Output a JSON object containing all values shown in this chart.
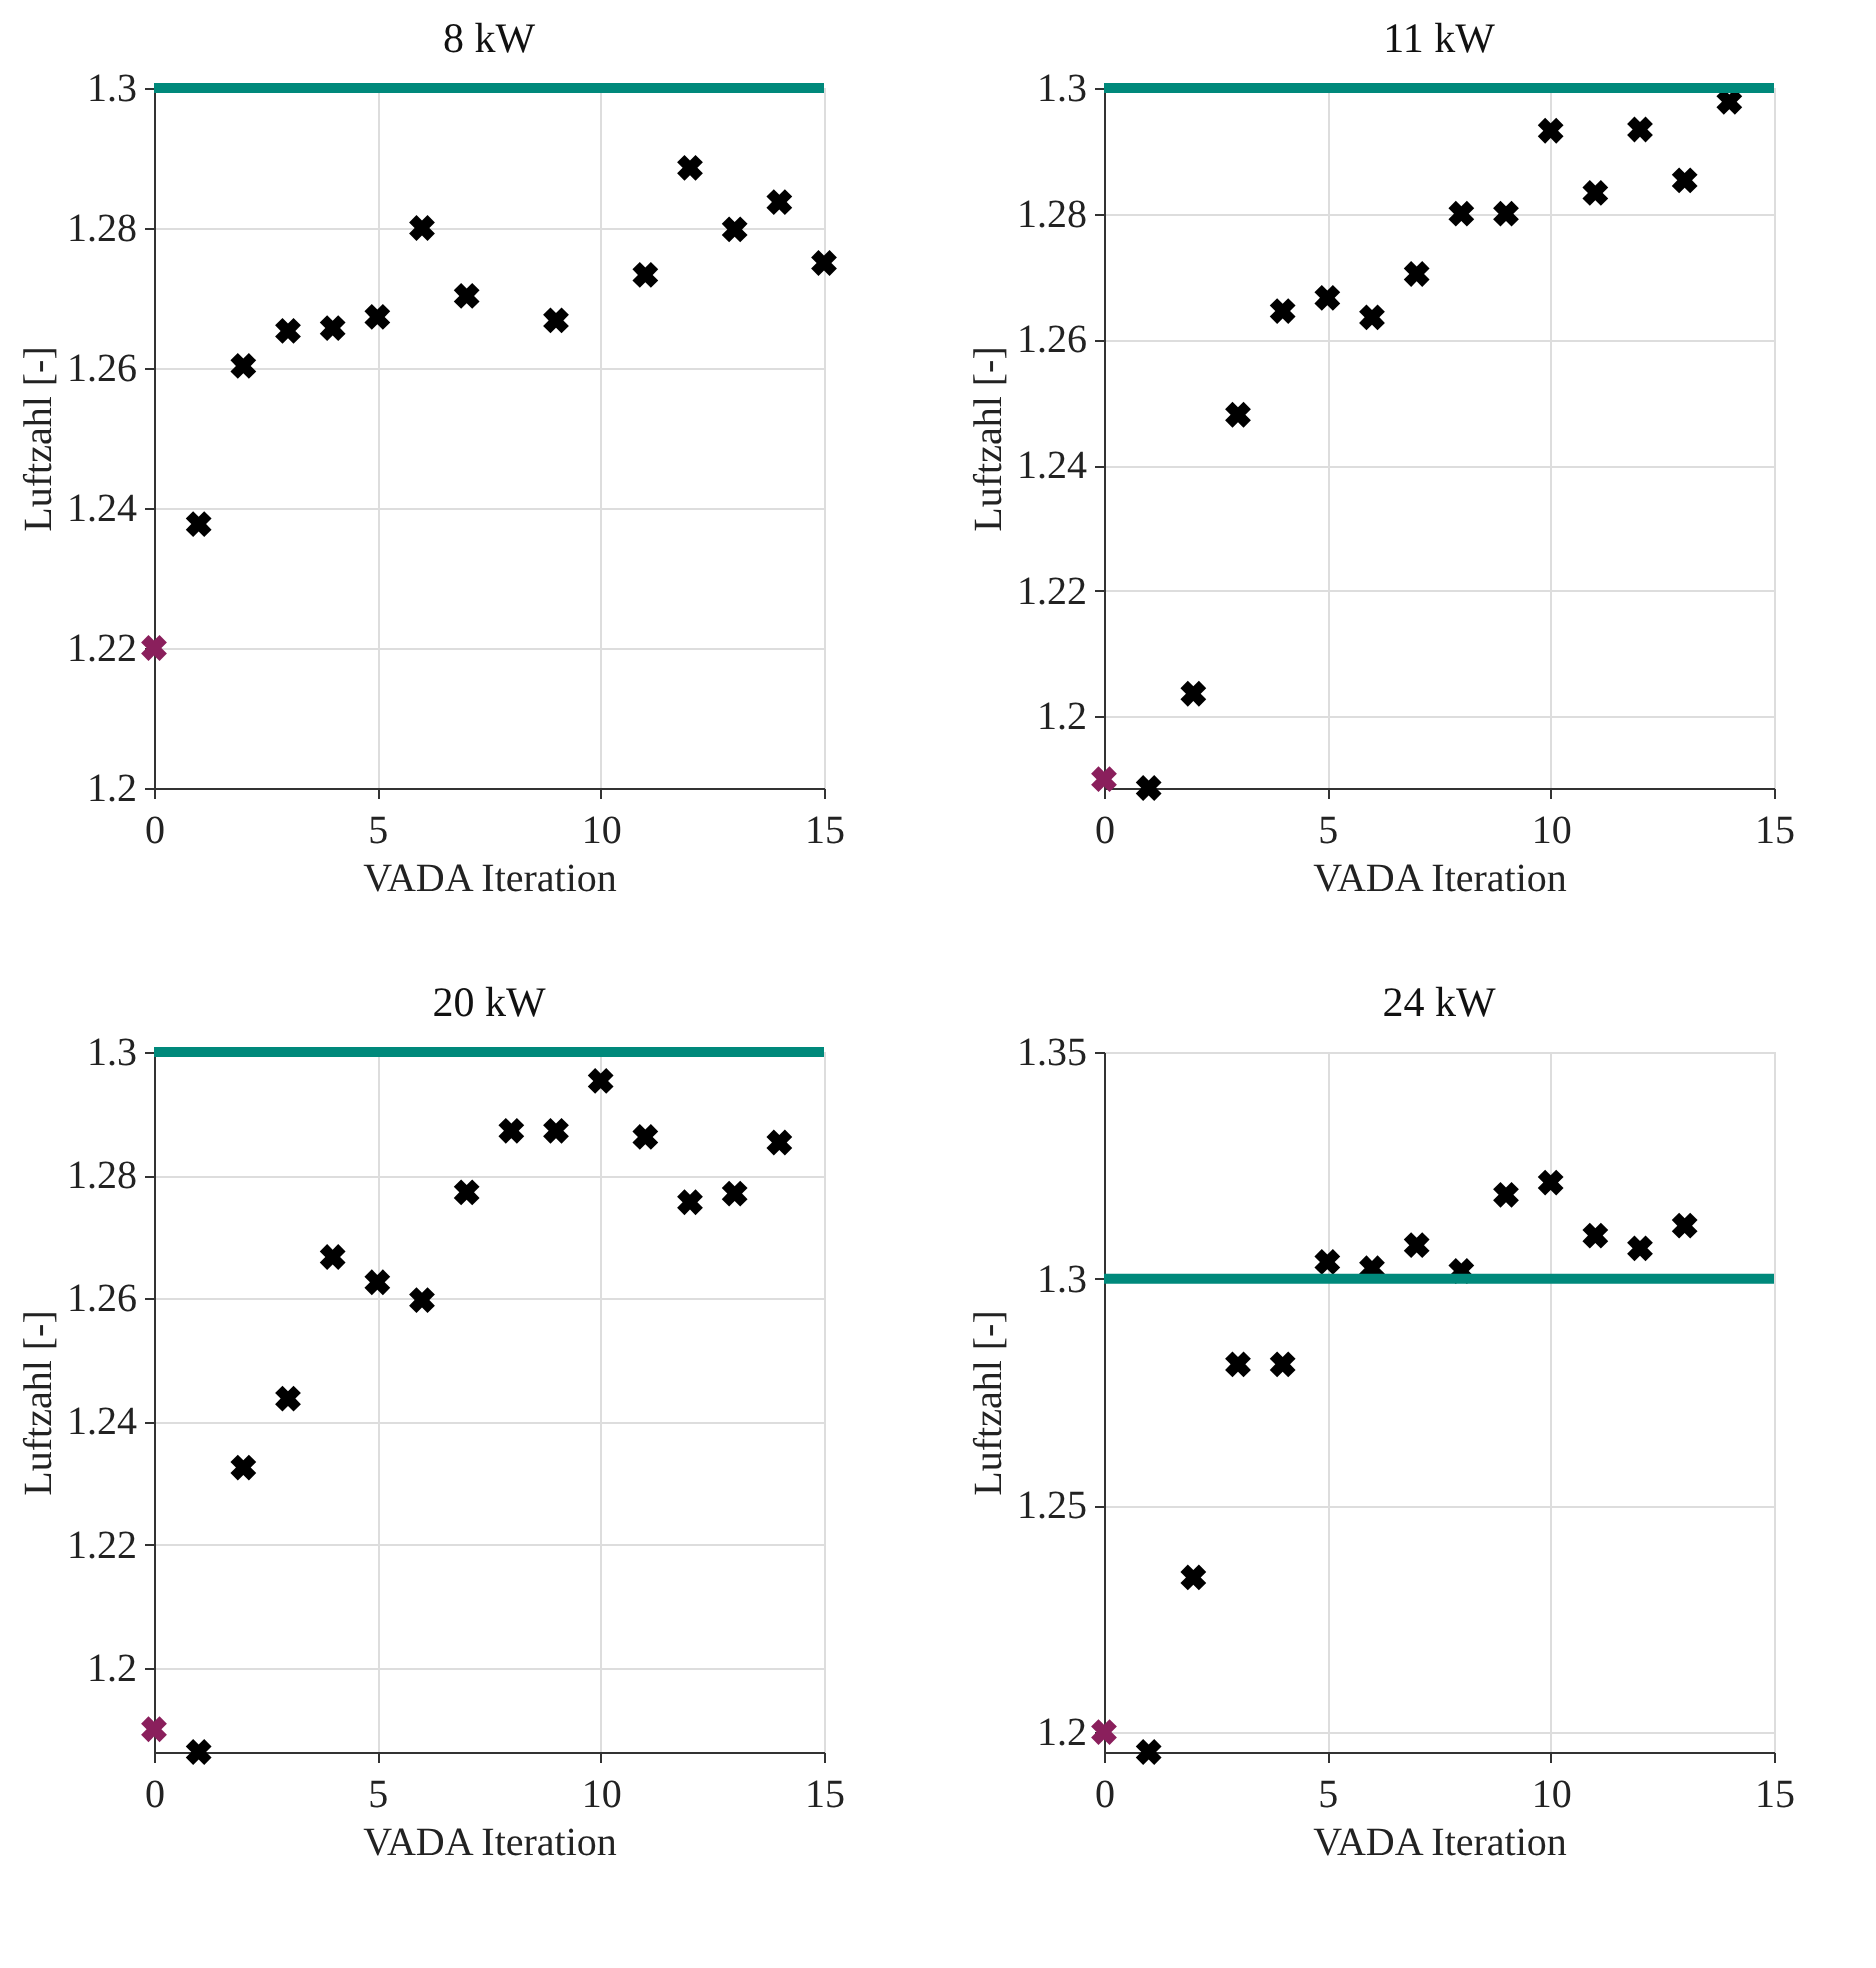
{
  "chart_data": [
    {
      "type": "scatter",
      "title": "8 kW",
      "xlabel": "VADA Iteration",
      "ylabel": "Luftzahl [-]",
      "xlim": [
        0,
        15
      ],
      "xticks": [
        0,
        5,
        10,
        15
      ],
      "ylim": [
        1.2,
        1.3
      ],
      "yticks": [
        1.2,
        1.22,
        1.24,
        1.26,
        1.28,
        1.3
      ],
      "grid": true,
      "marker": "cross",
      "ref_lines": [
        {
          "axis": "y",
          "value": 1.3,
          "color": "#00897b"
        }
      ],
      "series": [
        {
          "color": "#8a1f5c",
          "x": [
            0
          ],
          "values": [
            1.22
          ]
        },
        {
          "color": "#000000",
          "x": [
            1,
            2,
            3,
            4,
            5,
            6,
            7,
            9,
            11,
            12,
            13,
            14,
            15
          ],
          "values": [
            1.2377,
            1.2603,
            1.2653,
            1.2657,
            1.2673,
            1.28,
            1.2703,
            1.2668,
            1.2733,
            1.2886,
            1.2798,
            1.2837,
            1.275
          ]
        }
      ]
    },
    {
      "type": "scatter",
      "title": "11 kW",
      "xlabel": "VADA Iteration",
      "ylabel": "Luftzahl [-]",
      "xlim": [
        0,
        15
      ],
      "xticks": [
        0,
        5,
        10,
        15
      ],
      "ylim": [
        1.1886,
        1.3
      ],
      "yticks": [
        1.2,
        1.22,
        1.24,
        1.26,
        1.28,
        1.3
      ],
      "grid": true,
      "marker": "cross",
      "ref_lines": [
        {
          "axis": "y",
          "value": 1.3,
          "color": "#00897b"
        }
      ],
      "series": [
        {
          "color": "#8a1f5c",
          "x": [
            0
          ],
          "values": [
            1.19
          ]
        },
        {
          "color": "#000000",
          "x": [
            1,
            2,
            3,
            4,
            5,
            6,
            7,
            8,
            9,
            10,
            11,
            12,
            13,
            14
          ],
          "values": [
            1.1886,
            1.2036,
            1.248,
            1.2645,
            1.2666,
            1.2635,
            1.2704,
            1.28,
            1.28,
            1.2932,
            1.2833,
            1.2934,
            1.2853,
            1.2978
          ]
        }
      ]
    },
    {
      "type": "scatter",
      "title": "20 kW",
      "xlabel": "VADA Iteration",
      "ylabel": "Luftzahl [-]",
      "xlim": [
        0,
        15
      ],
      "xticks": [
        0,
        5,
        10,
        15
      ],
      "ylim": [
        1.1863,
        1.3
      ],
      "yticks": [
        1.2,
        1.22,
        1.24,
        1.26,
        1.28,
        1.3
      ],
      "grid": true,
      "marker": "cross",
      "ref_lines": [
        {
          "axis": "y",
          "value": 1.3,
          "color": "#00897b"
        }
      ],
      "series": [
        {
          "color": "#8a1f5c",
          "x": [
            0
          ],
          "values": [
            1.19
          ]
        },
        {
          "color": "#000000",
          "x": [
            1,
            2,
            3,
            4,
            5,
            6,
            7,
            8,
            9,
            10,
            11,
            12,
            13,
            14
          ],
          "values": [
            1.1863,
            1.2325,
            1.2437,
            1.2667,
            1.2626,
            1.2597,
            1.2772,
            1.2872,
            1.2872,
            1.2953,
            1.2862,
            1.2756,
            1.277,
            1.2853
          ]
        }
      ]
    },
    {
      "type": "scatter",
      "title": "24 kW",
      "xlabel": "VADA Iteration",
      "ylabel": "Luftzahl [-]",
      "xlim": [
        0,
        15
      ],
      "xticks": [
        0,
        5,
        10,
        15
      ],
      "ylim": [
        1.1956,
        1.35
      ],
      "yticks": [
        1.2,
        1.25,
        1.3,
        1.35
      ],
      "grid": true,
      "marker": "cross",
      "ref_lines": [
        {
          "axis": "y",
          "value": 1.3,
          "color": "#00897b"
        }
      ],
      "series": [
        {
          "color": "#8a1f5c",
          "x": [
            0
          ],
          "values": [
            1.2
          ]
        },
        {
          "color": "#000000",
          "x": [
            1,
            2,
            3,
            4,
            5,
            6,
            7,
            8,
            9,
            10,
            11,
            12,
            13
          ],
          "values": [
            1.1956,
            1.2341,
            1.2811,
            1.2811,
            1.3037,
            1.3023,
            1.3074,
            1.3017,
            1.3185,
            1.3212,
            1.3095,
            1.3067,
            1.3117
          ]
        }
      ]
    }
  ]
}
